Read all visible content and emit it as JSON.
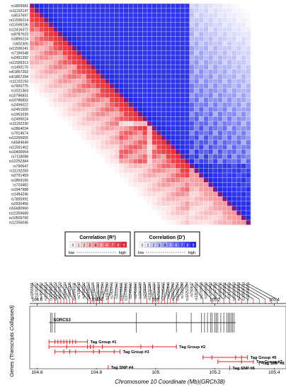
{
  "chart_data": {
    "type": "heatmap",
    "snps": [
      "rs1855581",
      "rs11192147",
      "rs4537697",
      "rs11596214",
      "rs11599236",
      "rs12416372",
      "rs9787523",
      "rs3896224",
      "rs902305",
      "rs11596241",
      "rs7186548",
      "rs2491392",
      "rs11599313",
      "rs1490176",
      "rs61867293",
      "rs61867294",
      "rs11192193",
      "rs7900775",
      "rs1021363",
      "rs10786831",
      "rs10786832",
      "rs2496022",
      "rs2451500",
      "rs1961639",
      "rs2496024",
      "rs11192230",
      "rs2864034",
      "rs7914674",
      "rs12265655",
      "rs6584649",
      "rs11591402",
      "rs10400054",
      "rs7118088",
      "rs12252384",
      "rs790647",
      "rs11192283",
      "rs2791459",
      "rs1869165",
      "rs703482",
      "rs1947988",
      "rs1484246",
      "rs7895991",
      "rs2930456",
      "rs55680960",
      "rs12359689",
      "rs10509790",
      "rs12356045"
    ],
    "snp_positions_mb": [
      104.64,
      104.66,
      104.67,
      104.68,
      104.69,
      104.7,
      104.71,
      104.72,
      104.73,
      104.77,
      104.78,
      104.78,
      104.79,
      104.8,
      104.81,
      104.81,
      104.82,
      104.84,
      104.86,
      104.88,
      104.89,
      104.91,
      104.93,
      104.95,
      104.97,
      104.99,
      105.0,
      105.01,
      105.02,
      105.03,
      105.04,
      105.05,
      105.06,
      105.07,
      105.16,
      105.19,
      105.21,
      105.23,
      105.25,
      105.27,
      105.29,
      105.31,
      105.33,
      105.35,
      105.37,
      105.39,
      105.41
    ],
    "legend_r2": {
      "title": "Correlation (R²)",
      "ticks": [
        "0",
        "1",
        "2",
        "3",
        "4",
        "5",
        "6",
        "7",
        "8",
        "9"
      ],
      "low": "low",
      "high": "high"
    },
    "legend_dprime": {
      "title": "Correlation (D')",
      "ticks": [
        "0",
        "1",
        "2",
        "3",
        "4",
        "5",
        "6",
        "7",
        "8",
        "9"
      ],
      "low": "low",
      "high": "high"
    },
    "axis": {
      "ticks": [
        "104.6",
        "104.8",
        "105",
        "105.2",
        "105.4"
      ],
      "xlabel": "Chromosome 10 Coordinate (Mb)(GRCh38)",
      "ylabel": "Genes (Transcripts Collapsed)",
      "xlim": [
        104.575,
        105.44
      ]
    },
    "gene": {
      "name": "SORCS3",
      "start": 104.64,
      "end": 105.27,
      "exons": [
        104.645,
        104.65,
        104.66,
        104.935,
        105.07,
        105.12,
        105.155,
        105.165,
        105.175,
        105.185,
        105.19,
        105.2,
        105.205,
        105.21,
        105.22,
        105.23,
        105.24,
        105.245,
        105.25,
        105.255,
        105.26,
        105.265
      ]
    },
    "tag_groups": [
      {
        "label": "Tag Group #1",
        "snp_index": [
          0,
          1,
          2,
          3,
          4,
          5,
          6,
          7,
          8,
          9
        ]
      },
      {
        "label": "Tag Group #2",
        "snp_index": [
          0,
          5,
          9,
          10,
          11,
          12,
          16,
          23,
          25,
          33
        ]
      },
      {
        "label": "Tag Group #3",
        "snp_index": [
          1,
          4,
          6,
          8,
          12,
          14,
          15,
          18,
          19
        ]
      },
      {
        "label": "Tag Group #5",
        "snp_index": [
          34,
          35,
          39,
          40,
          41
        ]
      },
      {
        "label": "Tag Group #7",
        "snp_index": [
          36,
          40,
          42
        ]
      },
      {
        "label": "Tag SNP #4",
        "snp_index": [
          17
        ]
      },
      {
        "label": "Tag SNP #6",
        "snp_index": [
          38
        ]
      },
      {
        "label": "Tag SNP #8",
        "snp_index": [
          43
        ]
      }
    ],
    "colors": {
      "r2": "#e8202a",
      "dprime": "#1c24e6",
      "diagonal": "#7d1a7d",
      "tag": "#e8202a",
      "gene": "#333333"
    }
  }
}
